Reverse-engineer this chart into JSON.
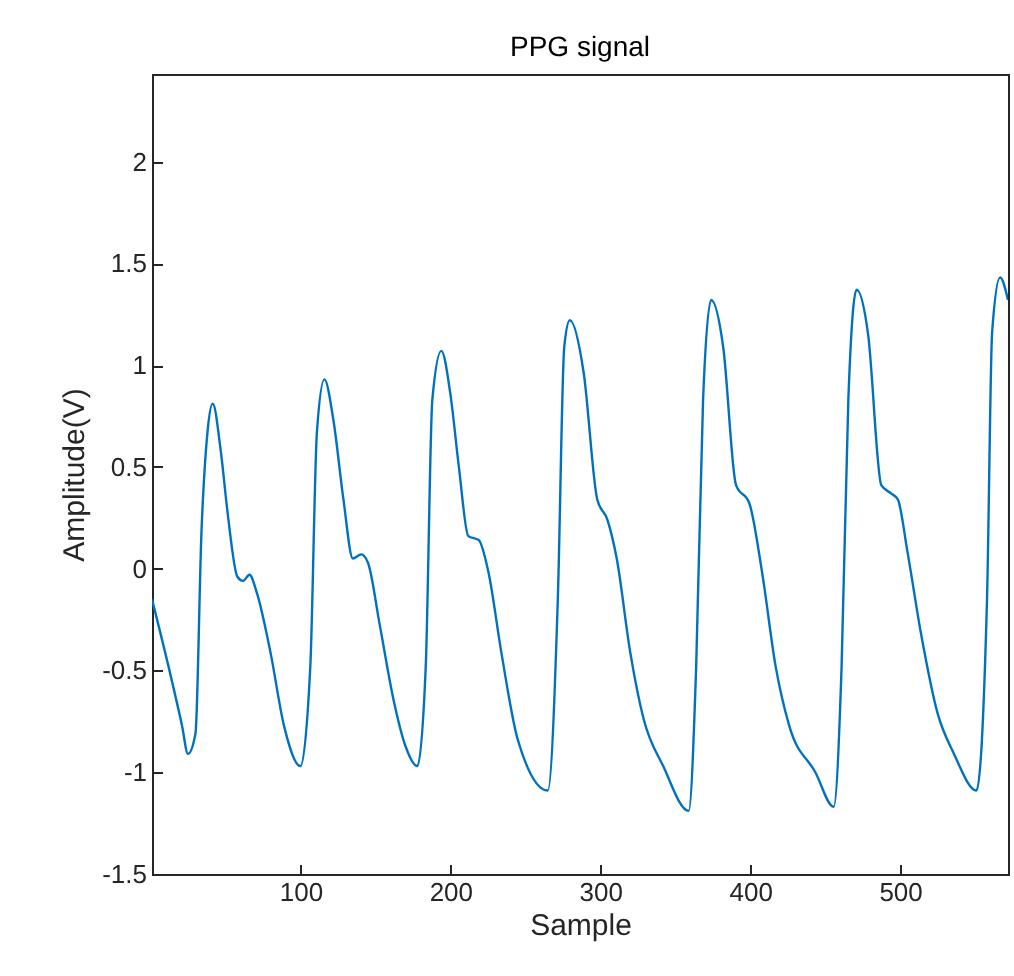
{
  "chart_data": {
    "type": "line",
    "title": "PPG signal",
    "xlabel": "Sample",
    "ylabel": "Amplitude(V)",
    "xlim": [
      1,
      572
    ],
    "ylim": [
      -1.5,
      2.43
    ],
    "xticks": [
      100,
      200,
      300,
      400,
      500
    ],
    "yticks": [
      -1.5,
      -1,
      -0.5,
      0,
      0.5,
      1,
      1.5,
      2
    ],
    "grid": false,
    "marker": "none",
    "line_style": "solid",
    "series": [
      {
        "color": "#0072bd",
        "x": [
          1,
          12,
          21,
          25,
          30,
          34,
          38,
          41.5,
          47,
          51.5,
          58,
          61.7,
          66,
          71,
          80,
          89,
          100,
          106.6,
          111,
          116,
          122,
          128.7,
          135,
          140.5,
          145,
          153,
          162,
          170,
          178,
          183.6,
          188,
          194,
          200,
          205.7,
          212,
          219,
          225.5,
          234,
          245,
          265,
          271.7,
          276,
          279.7,
          289,
          298,
          304.8,
          311,
          320,
          329,
          342,
          359,
          364,
          368.6,
          374,
          382,
          390.6,
          399.5,
          408,
          417,
          426,
          443.5,
          455.7,
          461,
          465.5,
          471,
          478.7,
          487.5,
          494,
          498.5,
          505,
          514,
          525,
          536,
          551,
          558,
          561.4,
          566.7,
          572
        ],
        "values": [
          -0.15,
          -0.48,
          -0.77,
          -0.91,
          -0.81,
          0.18,
          0.67,
          0.81,
          0.57,
          0.27,
          -0.04,
          -0.06,
          -0.03,
          -0.12,
          -0.41,
          -0.77,
          -0.97,
          -0.48,
          0.67,
          0.93,
          0.73,
          0.34,
          0.05,
          0.07,
          0.03,
          -0.28,
          -0.64,
          -0.87,
          -0.97,
          -0.48,
          0.83,
          1.07,
          0.86,
          0.5,
          0.16,
          0.14,
          -0.02,
          -0.41,
          -0.84,
          -1.09,
          -0.15,
          1.09,
          1.22,
          0.96,
          0.34,
          0.24,
          0.05,
          -0.41,
          -0.74,
          -0.97,
          -1.19,
          -0.48,
          0.83,
          1.32,
          1.09,
          0.41,
          0.32,
          -0.02,
          -0.48,
          -0.77,
          -1.0,
          -1.17,
          -0.48,
          0.83,
          1.37,
          1.15,
          0.41,
          0.37,
          0.34,
          0.08,
          -0.32,
          -0.71,
          -0.91,
          -1.09,
          -0.15,
          1.16,
          1.43,
          1.32
        ]
      }
    ]
  }
}
